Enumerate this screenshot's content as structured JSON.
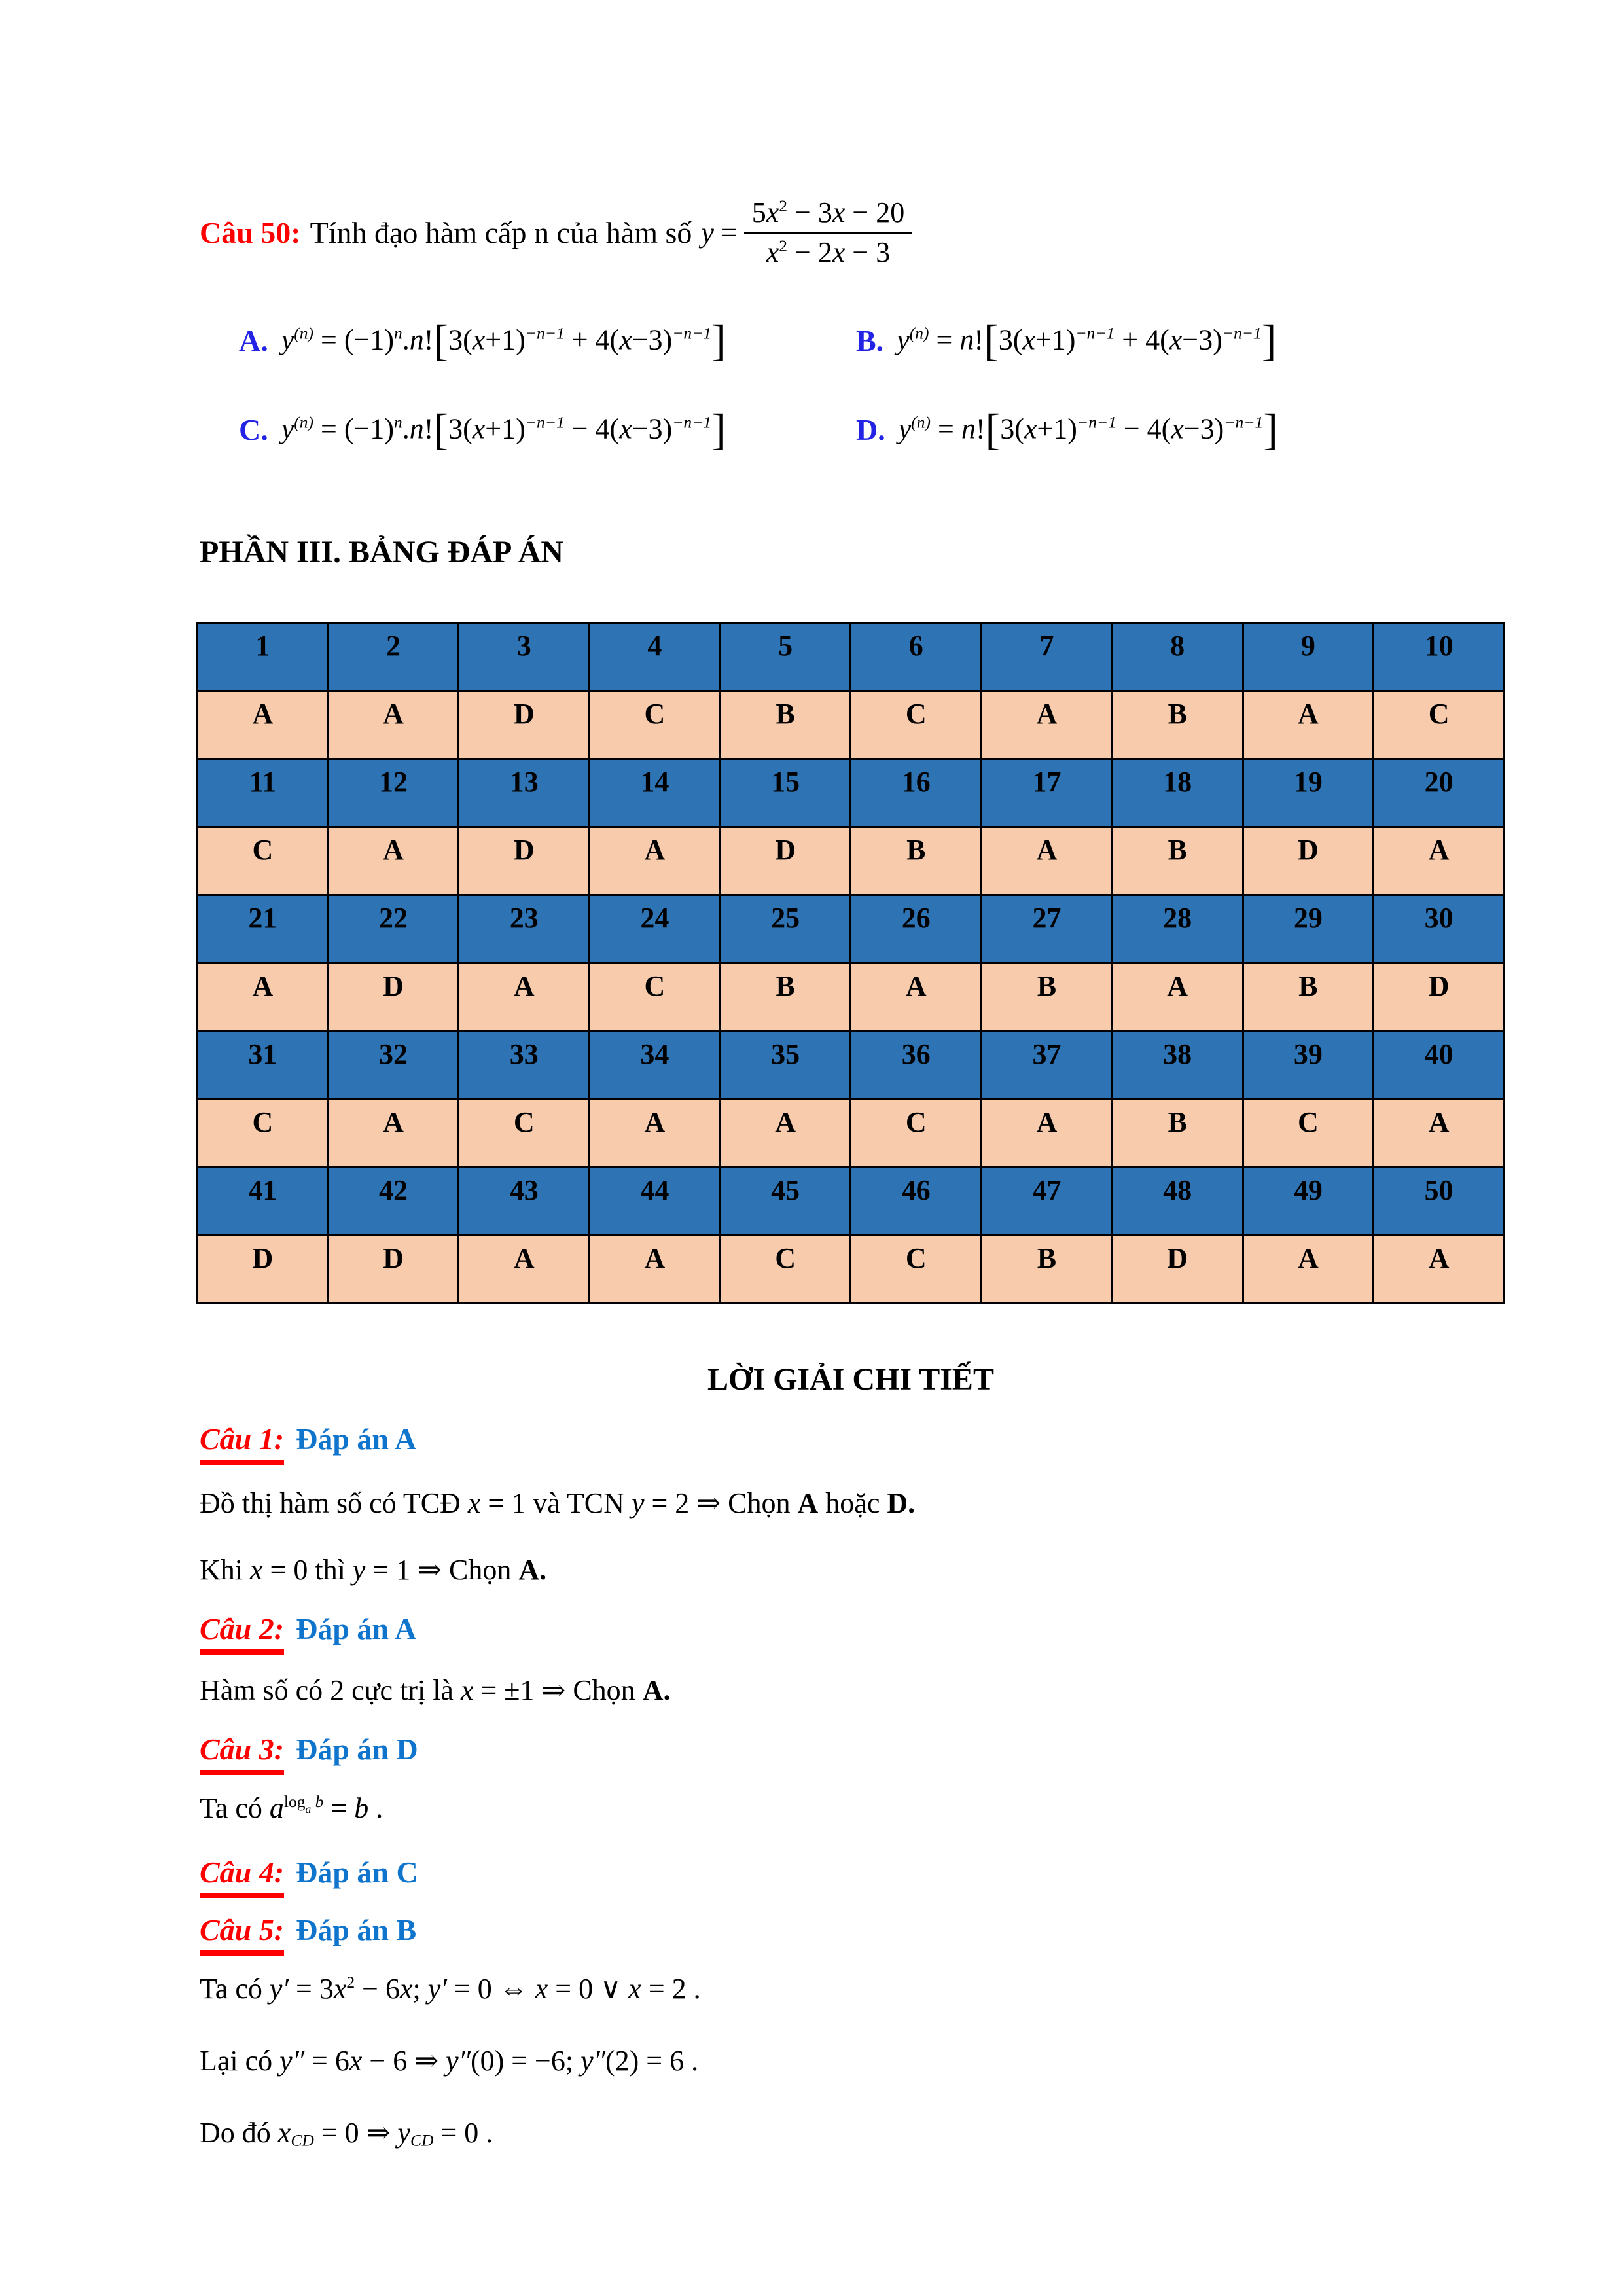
{
  "question": {
    "label": "Câu 50:",
    "text": "Tính đạo hàm cấp n của hàm số",
    "lhs": [
      {
        "t": "y",
        "c": "i"
      },
      {
        "t": " ="
      }
    ],
    "fraction": {
      "numerator": [
        {
          "t": "5"
        },
        {
          "t": "x",
          "c": "i"
        },
        {
          "t": "2",
          "c": "sup"
        },
        {
          "t": " − 3"
        },
        {
          "t": "x",
          "c": "i"
        },
        {
          "t": " − 20"
        }
      ],
      "denominator": [
        {
          "t": "x",
          "c": "i"
        },
        {
          "t": "2",
          "c": "sup"
        },
        {
          "t": " − 2"
        },
        {
          "t": "x",
          "c": "i"
        },
        {
          "t": " − 3"
        }
      ]
    },
    "options": [
      {
        "label": "A.",
        "formula": [
          {
            "t": "y",
            "c": "i"
          },
          {
            "t": "(n)",
            "c": "sup i"
          },
          {
            "t": " = (−1)"
          },
          {
            "t": "n",
            "c": "sup i"
          },
          {
            "t": "."
          },
          {
            "t": "n",
            "c": "i"
          },
          {
            "t": "!"
          },
          {
            "t": "[",
            "c": "lb"
          },
          {
            "t": "3("
          },
          {
            "t": "x",
            "c": "i"
          },
          {
            "t": "+1)"
          },
          {
            "t": "−n−1",
            "c": "sup i"
          },
          {
            "t": " + 4("
          },
          {
            "t": "x",
            "c": "i"
          },
          {
            "t": "−3)"
          },
          {
            "t": "−n−1",
            "c": "sup i"
          },
          {
            "t": "]",
            "c": "lb"
          }
        ]
      },
      {
        "label": "B.",
        "formula": [
          {
            "t": "y",
            "c": "i"
          },
          {
            "t": "(n)",
            "c": "sup i"
          },
          {
            "t": " = "
          },
          {
            "t": "n",
            "c": "i"
          },
          {
            "t": "!"
          },
          {
            "t": "[",
            "c": "lb"
          },
          {
            "t": "3("
          },
          {
            "t": "x",
            "c": "i"
          },
          {
            "t": "+1)"
          },
          {
            "t": "−n−1",
            "c": "sup i"
          },
          {
            "t": " + 4("
          },
          {
            "t": "x",
            "c": "i"
          },
          {
            "t": "−3)"
          },
          {
            "t": "−n−1",
            "c": "sup i"
          },
          {
            "t": "]",
            "c": "lb"
          }
        ]
      },
      {
        "label": "C.",
        "formula": [
          {
            "t": "y",
            "c": "i"
          },
          {
            "t": "(n)",
            "c": "sup i"
          },
          {
            "t": " = (−1)"
          },
          {
            "t": "n",
            "c": "sup i"
          },
          {
            "t": "."
          },
          {
            "t": "n",
            "c": "i"
          },
          {
            "t": "!"
          },
          {
            "t": "[",
            "c": "lb"
          },
          {
            "t": "3("
          },
          {
            "t": "x",
            "c": "i"
          },
          {
            "t": "+1)"
          },
          {
            "t": "−n−1",
            "c": "sup i"
          },
          {
            "t": " − 4("
          },
          {
            "t": "x",
            "c": "i"
          },
          {
            "t": "−3)"
          },
          {
            "t": "−n−1",
            "c": "sup i"
          },
          {
            "t": "]",
            "c": "lb"
          }
        ]
      },
      {
        "label": "D.",
        "formula": [
          {
            "t": "y",
            "c": "i"
          },
          {
            "t": "(n)",
            "c": "sup i"
          },
          {
            "t": " = "
          },
          {
            "t": "n",
            "c": "i"
          },
          {
            "t": "!"
          },
          {
            "t": "[",
            "c": "lb"
          },
          {
            "t": "3("
          },
          {
            "t": "x",
            "c": "i"
          },
          {
            "t": "+1)"
          },
          {
            "t": "−n−1",
            "c": "sup i"
          },
          {
            "t": " − 4("
          },
          {
            "t": "x",
            "c": "i"
          },
          {
            "t": "−3)"
          },
          {
            "t": "−n−1",
            "c": "sup i"
          },
          {
            "t": "]",
            "c": "lb"
          }
        ]
      }
    ]
  },
  "part3": {
    "heading": "PHẦN III. BẢNG ĐÁP ÁN"
  },
  "answer_table": {
    "rows": [
      {
        "type": "numbers",
        "cells": [
          "1",
          "2",
          "3",
          "4",
          "5",
          "6",
          "7",
          "8",
          "9",
          "10"
        ]
      },
      {
        "type": "answers",
        "cells": [
          "A",
          "A",
          "D",
          "C",
          "B",
          "C",
          "A",
          "B",
          "A",
          "C"
        ]
      },
      {
        "type": "numbers",
        "cells": [
          "11",
          "12",
          "13",
          "14",
          "15",
          "16",
          "17",
          "18",
          "19",
          "20"
        ]
      },
      {
        "type": "answers",
        "cells": [
          "C",
          "A",
          "D",
          "A",
          "D",
          "B",
          "A",
          "B",
          "D",
          "A"
        ]
      },
      {
        "type": "numbers",
        "cells": [
          "21",
          "22",
          "23",
          "24",
          "25",
          "26",
          "27",
          "28",
          "29",
          "30"
        ]
      },
      {
        "type": "answers",
        "cells": [
          "A",
          "D",
          "A",
          "C",
          "B",
          "A",
          "B",
          "A",
          "B",
          "D"
        ]
      },
      {
        "type": "numbers",
        "cells": [
          "31",
          "32",
          "33",
          "34",
          "35",
          "36",
          "37",
          "38",
          "39",
          "40"
        ]
      },
      {
        "type": "answers",
        "cells": [
          "C",
          "A",
          "C",
          "A",
          "A",
          "C",
          "A",
          "B",
          "C",
          "A"
        ]
      },
      {
        "type": "numbers",
        "cells": [
          "41",
          "42",
          "43",
          "44",
          "45",
          "46",
          "47",
          "48",
          "49",
          "50"
        ]
      },
      {
        "type": "answers",
        "cells": [
          "D",
          "D",
          "A",
          "A",
          "C",
          "C",
          "B",
          "D",
          "A",
          "A"
        ]
      }
    ]
  },
  "solutions": {
    "heading": "LỜI GIẢI CHI TIẾT",
    "items": [
      {
        "label": "Câu 1:",
        "answer": "Đáp án A",
        "lines": [
          [
            {
              "t": "Đồ thị hàm số có TCĐ "
            },
            {
              "t": "x",
              "c": "i"
            },
            {
              "t": " = 1  và TCN  "
            },
            {
              "t": "y",
              "c": "i"
            },
            {
              "t": " = 2 ⇒ "
            },
            {
              "t": "Chọn "
            },
            {
              "t": "A",
              "c": "b"
            },
            {
              "t": " hoặc "
            },
            {
              "t": "D.",
              "c": "b"
            }
          ],
          [
            {
              "t": "Khi  "
            },
            {
              "t": "x",
              "c": "i"
            },
            {
              "t": " = 0  thì  "
            },
            {
              "t": "y",
              "c": "i"
            },
            {
              "t": " = 1 ⇒ "
            },
            {
              "t": "Chọn "
            },
            {
              "t": "A.",
              "c": "b"
            }
          ]
        ]
      },
      {
        "label": "Câu 2:",
        "answer": "Đáp án A",
        "lines": [
          [
            {
              "t": "Hàm số có 2 cực trị là  "
            },
            {
              "t": "x",
              "c": "i"
            },
            {
              "t": " = ±1 ⇒ "
            },
            {
              "t": "Chọn "
            },
            {
              "t": "A.",
              "c": "b"
            }
          ]
        ]
      },
      {
        "label": "Câu 3:",
        "answer": "Đáp án D",
        "lines": [
          [
            {
              "t": "Ta có  "
            },
            {
              "t": "a",
              "c": "i"
            },
            {
              "t": "log",
              "c": "sup"
            },
            {
              "t": "a",
              "c": "ss i"
            },
            {
              "t": " b",
              "c": "sup i"
            },
            {
              "t": " = "
            },
            {
              "t": "b",
              "c": "i"
            },
            {
              "t": " ."
            }
          ]
        ]
      },
      {
        "label": "Câu 4:",
        "answer": "Đáp án C",
        "lines": []
      },
      {
        "label": "Câu 5:",
        "answer": "Đáp án B",
        "lines": [
          [
            {
              "t": "Ta có  "
            },
            {
              "t": "y′",
              "c": "i"
            },
            {
              "t": " = 3"
            },
            {
              "t": "x",
              "c": "i"
            },
            {
              "t": "2",
              "c": "sup"
            },
            {
              "t": " − 6"
            },
            {
              "t": "x",
              "c": "i"
            },
            {
              "t": ";  "
            },
            {
              "t": "y′",
              "c": "i"
            },
            {
              "t": " = 0 ⇔ "
            },
            {
              "t": "x",
              "c": "i"
            },
            {
              "t": " = 0 ∨ "
            },
            {
              "t": "x",
              "c": "i"
            },
            {
              "t": " = 2 ."
            }
          ],
          [
            {
              "t": "Lại có  "
            },
            {
              "t": "y″",
              "c": "i"
            },
            {
              "t": " = 6"
            },
            {
              "t": "x",
              "c": "i"
            },
            {
              "t": " − 6 ⇒ "
            },
            {
              "t": "y″",
              "c": "i"
            },
            {
              "t": "(0) = −6; "
            },
            {
              "t": "y″",
              "c": "i"
            },
            {
              "t": "(2) = 6 ."
            }
          ],
          [
            {
              "t": "Do đó  "
            },
            {
              "t": "x",
              "c": "i"
            },
            {
              "t": "CD",
              "c": "sub i"
            },
            {
              "t": " = 0 ⇒ "
            },
            {
              "t": "y",
              "c": "i"
            },
            {
              "t": "CD",
              "c": "sub i"
            },
            {
              "t": " = 0 ."
            }
          ]
        ]
      }
    ]
  }
}
